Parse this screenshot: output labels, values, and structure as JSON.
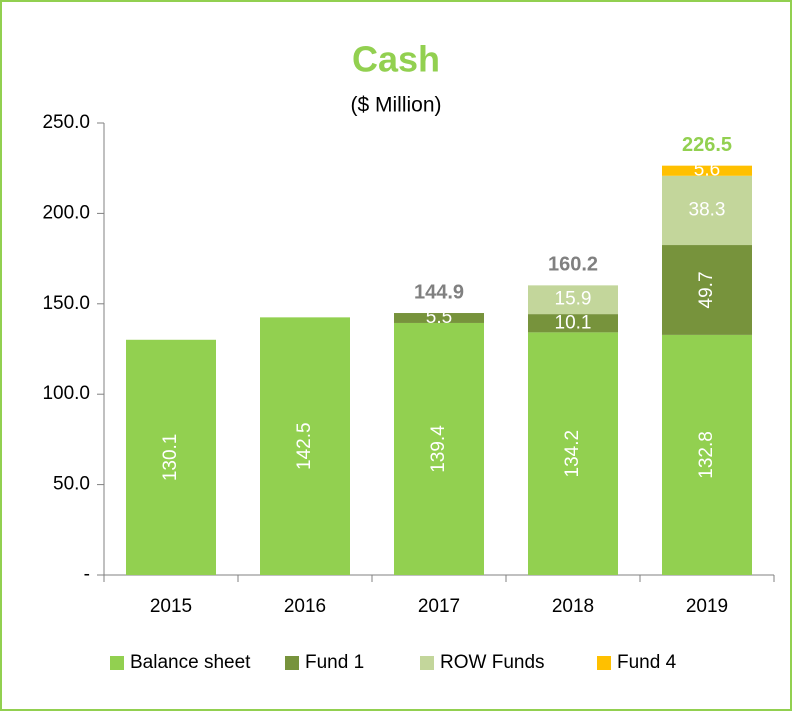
{
  "chart_data": {
    "type": "stacked_bar",
    "title": "Cash",
    "subtitle": "($ Million)",
    "categories": [
      "2015",
      "2016",
      "2017",
      "2018",
      "2019"
    ],
    "series": [
      {
        "name": "Balance sheet",
        "color": "#92d050",
        "values": [
          130.1,
          142.5,
          139.4,
          134.2,
          132.8
        ]
      },
      {
        "name": "Fund 1",
        "color": "#77933c",
        "values": [
          null,
          null,
          5.5,
          10.1,
          49.7
        ]
      },
      {
        "name": "ROW Funds",
        "color": "#c3d69b",
        "values": [
          null,
          null,
          null,
          15.9,
          38.3
        ]
      },
      {
        "name": "Fund 4",
        "color": "#ffc000",
        "values": [
          null,
          null,
          null,
          null,
          5.6
        ]
      }
    ],
    "totals": [
      null,
      null,
      144.9,
      160.2,
      226.5
    ],
    "total_colors": [
      null,
      null,
      "#808080",
      "#808080",
      "#92d050"
    ],
    "ylim": [
      0,
      250
    ],
    "yticks": [
      {
        "value": 0,
        "label": "-"
      },
      {
        "value": 50,
        "label": "50.0"
      },
      {
        "value": 100,
        "label": "100.0"
      },
      {
        "value": 150,
        "label": "150.0"
      },
      {
        "value": 200,
        "label": "200.0"
      },
      {
        "value": 250,
        "label": "250.0"
      }
    ],
    "legend": "bottom"
  }
}
